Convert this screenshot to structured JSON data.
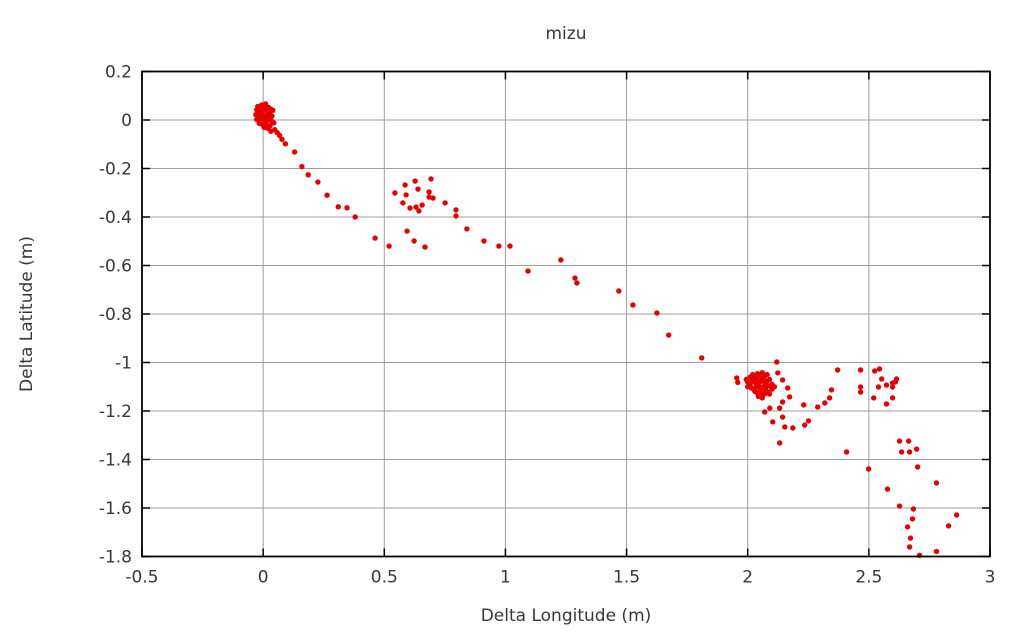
{
  "chart_data": {
    "type": "scatter",
    "title": "mizu",
    "xlabel": "Delta Longitude (m)",
    "ylabel": "Delta Latitude (m)",
    "xlim": [
      -0.5,
      3
    ],
    "ylim": [
      -1.8,
      0.2
    ],
    "xticks": [
      -0.5,
      0,
      0.5,
      1,
      1.5,
      2,
      2.5,
      3
    ],
    "xtick_labels": [
      "-0.5",
      "0",
      "0.5",
      "1",
      "1.5",
      "2",
      "2.5",
      "3"
    ],
    "yticks": [
      0.2,
      0,
      -0.2,
      -0.4,
      -0.6,
      -0.8,
      -1,
      -1.2,
      -1.4,
      -1.6,
      -1.8
    ],
    "ytick_labels": [
      "0.2",
      "0",
      "-0.2",
      "-0.4",
      "-0.6",
      "-0.8",
      "-1",
      "-1.2",
      "-1.4",
      "-1.6",
      "-1.8"
    ],
    "grid": true,
    "legend": false,
    "marker": "filled-circle",
    "marker_color": "#e60000",
    "grid_color": "#9e9e9e",
    "border_color": "#000000",
    "points": [
      [
        -0.022,
        0.056
      ],
      [
        -0.006,
        0.062
      ],
      [
        0.01,
        0.066
      ],
      [
        0.022,
        0.052
      ],
      [
        0.032,
        0.044
      ],
      [
        -0.026,
        0.042
      ],
      [
        -0.012,
        0.048
      ],
      [
        0.004,
        0.044
      ],
      [
        0.016,
        0.038
      ],
      [
        0.028,
        0.032
      ],
      [
        0.04,
        0.04
      ],
      [
        -0.03,
        0.022
      ],
      [
        -0.016,
        0.028
      ],
      [
        0.0,
        0.022
      ],
      [
        0.012,
        0.016
      ],
      [
        0.024,
        0.022
      ],
      [
        0.036,
        0.016
      ],
      [
        -0.026,
        0.002
      ],
      [
        -0.012,
        0.006
      ],
      [
        0.002,
        0.0
      ],
      [
        0.018,
        0.002
      ],
      [
        0.034,
        -0.004
      ],
      [
        -0.016,
        -0.014
      ],
      [
        0.0,
        -0.02
      ],
      [
        0.014,
        -0.016
      ],
      [
        0.028,
        -0.024
      ],
      [
        0.004,
        -0.03
      ],
      [
        0.018,
        -0.034
      ],
      [
        0.044,
        -0.012
      ],
      [
        0.032,
        -0.046
      ],
      [
        -0.004,
        0.036
      ],
      [
        0.008,
        0.052
      ],
      [
        0.02,
        0.012
      ],
      [
        -0.02,
        0.014
      ],
      [
        0.008,
        -0.008
      ],
      [
        0.026,
        0.006
      ],
      [
        0.048,
        -0.04
      ],
      [
        0.058,
        -0.052
      ],
      [
        0.068,
        -0.064
      ],
      [
        0.078,
        -0.08
      ],
      [
        0.092,
        -0.098
      ],
      [
        0.13,
        -0.132
      ],
      [
        0.16,
        -0.192
      ],
      [
        0.186,
        -0.226
      ],
      [
        0.226,
        -0.256
      ],
      [
        0.264,
        -0.31
      ],
      [
        0.31,
        -0.358
      ],
      [
        0.346,
        -0.362
      ],
      [
        0.38,
        -0.4
      ],
      [
        0.462,
        -0.487
      ],
      [
        0.52,
        -0.52
      ],
      [
        0.544,
        -0.301
      ],
      [
        0.586,
        -0.268
      ],
      [
        0.59,
        -0.309
      ],
      [
        0.577,
        -0.342
      ],
      [
        0.627,
        -0.252
      ],
      [
        0.639,
        -0.285
      ],
      [
        0.643,
        -0.375
      ],
      [
        0.656,
        -0.351
      ],
      [
        0.693,
        -0.243
      ],
      [
        0.685,
        -0.297
      ],
      [
        0.685,
        -0.318
      ],
      [
        0.701,
        -0.322
      ],
      [
        0.606,
        -0.363
      ],
      [
        0.631,
        -0.359
      ],
      [
        0.751,
        -0.342
      ],
      [
        0.796,
        -0.371
      ],
      [
        0.796,
        -0.396
      ],
      [
        0.594,
        -0.458
      ],
      [
        0.623,
        -0.499
      ],
      [
        0.668,
        -0.524
      ],
      [
        0.841,
        -0.449
      ],
      [
        0.911,
        -0.499
      ],
      [
        0.973,
        -0.52
      ],
      [
        1.019,
        -0.52
      ],
      [
        1.093,
        -0.623
      ],
      [
        1.229,
        -0.577
      ],
      [
        1.287,
        -0.652
      ],
      [
        1.295,
        -0.672
      ],
      [
        1.468,
        -0.705
      ],
      [
        1.526,
        -0.763
      ],
      [
        1.625,
        -0.796
      ],
      [
        1.674,
        -0.887
      ],
      [
        1.81,
        -0.981
      ],
      [
        1.955,
        -1.064
      ],
      [
        1.959,
        -1.082
      ],
      [
        2.01,
        -1.06
      ],
      [
        2.02,
        -1.05
      ],
      [
        2.03,
        -1.06
      ],
      [
        2.04,
        -1.046
      ],
      [
        2.05,
        -1.052
      ],
      [
        2.06,
        -1.042
      ],
      [
        2.07,
        -1.056
      ],
      [
        2.08,
        -1.05
      ],
      [
        2.0,
        -1.08
      ],
      [
        2.01,
        -1.09
      ],
      [
        2.02,
        -1.076
      ],
      [
        2.03,
        -1.082
      ],
      [
        2.04,
        -1.07
      ],
      [
        2.05,
        -1.08
      ],
      [
        2.06,
        -1.07
      ],
      [
        2.07,
        -1.082
      ],
      [
        2.08,
        -1.076
      ],
      [
        2.09,
        -1.07
      ],
      [
        2.014,
        -1.104
      ],
      [
        2.024,
        -1.11
      ],
      [
        2.034,
        -1.1
      ],
      [
        2.044,
        -1.096
      ],
      [
        2.054,
        -1.106
      ],
      [
        2.064,
        -1.1
      ],
      [
        2.074,
        -1.11
      ],
      [
        2.084,
        -1.096
      ],
      [
        2.03,
        -1.12
      ],
      [
        2.04,
        -1.126
      ],
      [
        2.05,
        -1.116
      ],
      [
        2.06,
        -1.126
      ],
      [
        2.07,
        -1.13
      ],
      [
        2.08,
        -1.12
      ],
      [
        2.044,
        -1.14
      ],
      [
        2.06,
        -1.146
      ],
      [
        2.09,
        -1.13
      ],
      [
        2.1,
        -1.11
      ],
      [
        2.1,
        -1.09
      ],
      [
        2.11,
        -1.1
      ],
      [
        2.0,
        -1.1
      ],
      [
        1.994,
        -1.07
      ],
      [
        2.124,
        -1.043
      ],
      [
        2.144,
        -1.072
      ],
      [
        2.12,
        -0.998
      ],
      [
        2.165,
        -1.105
      ],
      [
        2.173,
        -1.142
      ],
      [
        2.144,
        -1.163
      ],
      [
        2.091,
        -1.188
      ],
      [
        2.07,
        -1.204
      ],
      [
        2.132,
        -1.188
      ],
      [
        2.144,
        -1.225
      ],
      [
        2.103,
        -1.245
      ],
      [
        2.153,
        -1.266
      ],
      [
        2.186,
        -1.27
      ],
      [
        2.231,
        -1.175
      ],
      [
        2.251,
        -1.241
      ],
      [
        2.235,
        -1.258
      ],
      [
        2.289,
        -1.184
      ],
      [
        2.318,
        -1.167
      ],
      [
        2.338,
        -1.146
      ],
      [
        2.346,
        -1.113
      ],
      [
        2.371,
        -1.031
      ],
      [
        2.132,
        -1.332
      ],
      [
        2.466,
        -1.031
      ],
      [
        2.466,
        -1.101
      ],
      [
        2.466,
        -1.122
      ],
      [
        2.524,
        -1.035
      ],
      [
        2.544,
        -1.027
      ],
      [
        2.553,
        -1.068
      ],
      [
        2.54,
        -1.101
      ],
      [
        2.52,
        -1.146
      ],
      [
        2.573,
        -1.093
      ],
      [
        2.598,
        -1.084
      ],
      [
        2.598,
        -1.101
      ],
      [
        2.614,
        -1.068
      ],
      [
        2.598,
        -1.146
      ],
      [
        2.573,
        -1.171
      ],
      [
        2.61,
        -1.08
      ],
      [
        2.408,
        -1.369
      ],
      [
        2.499,
        -1.439
      ],
      [
        2.627,
        -1.324
      ],
      [
        2.664,
        -1.324
      ],
      [
        2.635,
        -1.369
      ],
      [
        2.668,
        -1.369
      ],
      [
        2.697,
        -1.357
      ],
      [
        2.701,
        -1.431
      ],
      [
        2.779,
        -1.497
      ],
      [
        2.577,
        -1.522
      ],
      [
        2.627,
        -1.592
      ],
      [
        2.684,
        -1.604
      ],
      [
        2.68,
        -1.645
      ],
      [
        2.66,
        -1.678
      ],
      [
        2.862,
        -1.629
      ],
      [
        2.829,
        -1.674
      ],
      [
        2.672,
        -1.724
      ],
      [
        2.668,
        -1.761
      ],
      [
        2.709,
        -1.795
      ],
      [
        2.779,
        -1.779
      ]
    ]
  }
}
